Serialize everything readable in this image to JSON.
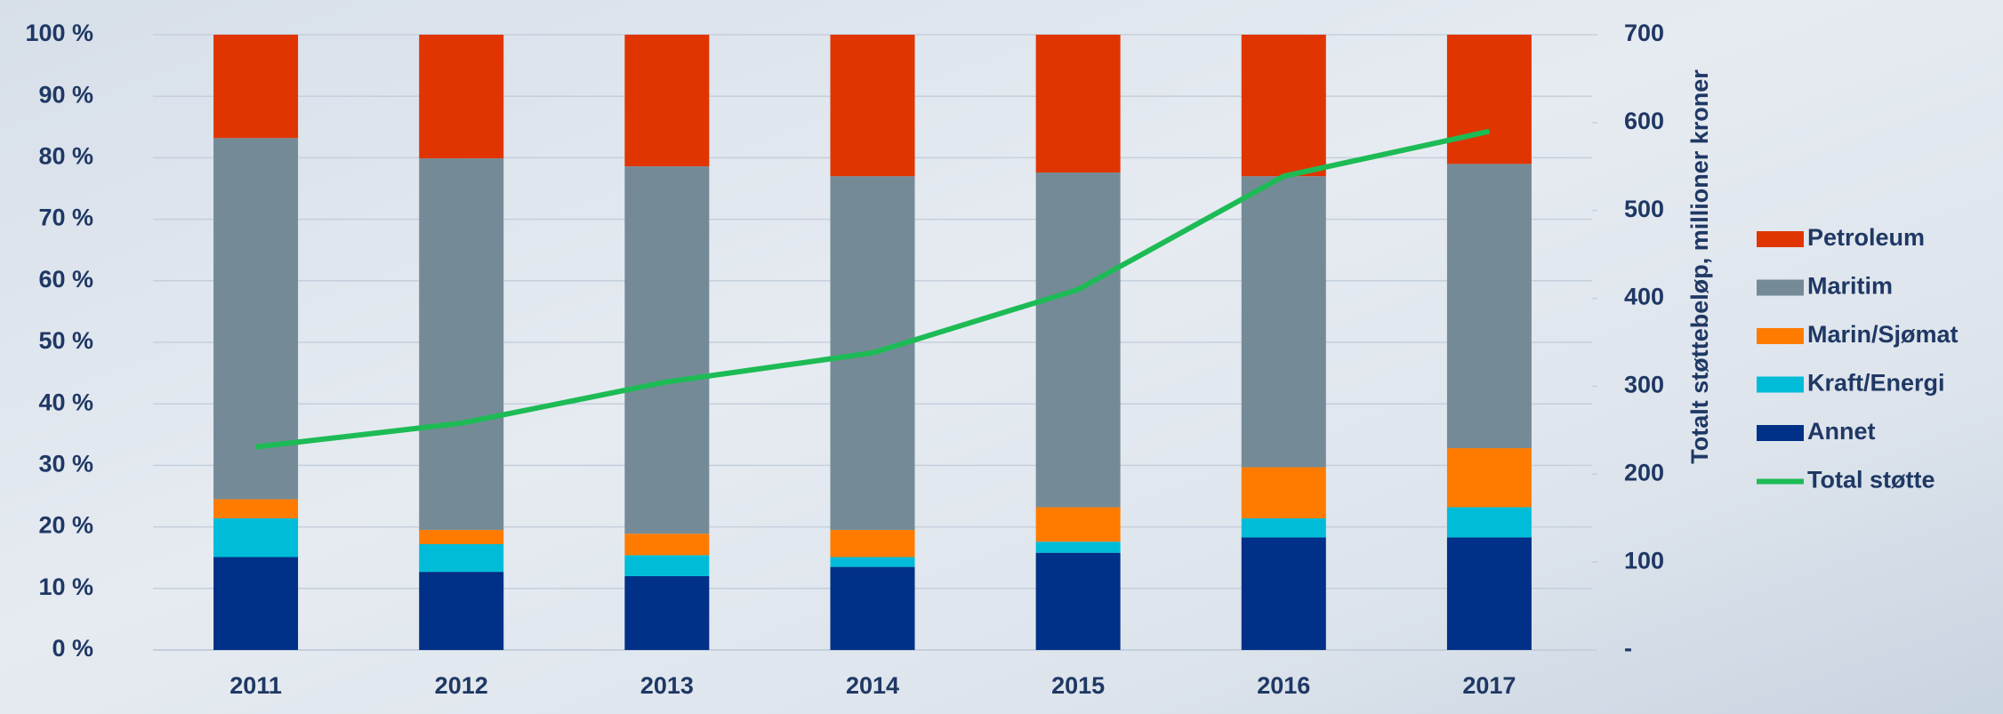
{
  "chart_data": {
    "type": "bar",
    "stacked": true,
    "categories": [
      "2011",
      "2012",
      "2013",
      "2014",
      "2015",
      "2016",
      "2017"
    ],
    "series": [
      {
        "name": "Annet",
        "color": "#003087",
        "values": [
          15.1,
          12.7,
          12.0,
          13.5,
          15.8,
          18.3,
          18.3
        ]
      },
      {
        "name": "Kraft/Energi",
        "color": "#00bcd8",
        "values": [
          6.3,
          4.5,
          3.4,
          1.6,
          1.8,
          3.1,
          4.9
        ]
      },
      {
        "name": "Marin/Sjømat",
        "color": "#ff7b00",
        "values": [
          3.1,
          2.3,
          3.5,
          4.4,
          5.6,
          8.3,
          9.6
        ]
      },
      {
        "name": "Maritim",
        "color": "#748b97",
        "values": [
          58.7,
          60.4,
          59.7,
          57.5,
          54.4,
          47.3,
          46.2
        ]
      },
      {
        "name": "Petroleum",
        "color": "#e03500",
        "values": [
          16.8,
          20.1,
          21.4,
          23.0,
          22.4,
          23.0,
          21.0
        ]
      },
      {
        "name": "Total støtte",
        "color": "#1dbb55",
        "type": "line",
        "axis": "y2",
        "values": [
          231,
          258,
          305,
          338,
          410,
          539,
          590
        ]
      }
    ],
    "ylim": [
      0,
      100
    ],
    "yticks": [
      {
        "value": 0,
        "label": "0 %"
      },
      {
        "value": 10,
        "label": "10 %"
      },
      {
        "value": 20,
        "label": "20 %"
      },
      {
        "value": 30,
        "label": "30 %"
      },
      {
        "value": 40,
        "label": "40 %"
      },
      {
        "value": 50,
        "label": "50 %"
      },
      {
        "value": 60,
        "label": "60 %"
      },
      {
        "value": 70,
        "label": "70 %"
      },
      {
        "value": 80,
        "label": "80 %"
      },
      {
        "value": 90,
        "label": "90 %"
      },
      {
        "value": 100,
        "label": "100 %"
      }
    ],
    "y2lim": [
      0,
      700
    ],
    "y2ticks": [
      {
        "value": 0,
        "label": "-"
      },
      100,
      200,
      300,
      400,
      500,
      600,
      700
    ],
    "y2label": "Totalt støttebeløp, millioner kroner",
    "grid": true,
    "legend": "right"
  }
}
